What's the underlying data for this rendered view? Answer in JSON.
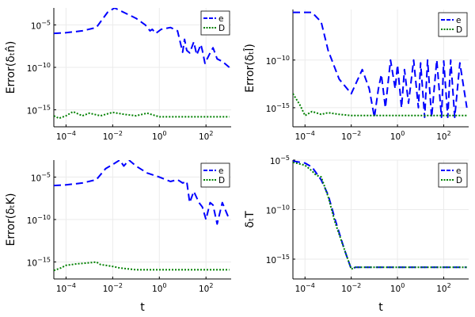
{
  "colors": {
    "e": "#0000ff",
    "D": "#008000",
    "grid": "#ebebeb",
    "axis": "#000000"
  },
  "chart_data": [
    {
      "type": "line",
      "panel": "top-left",
      "ylabel": "Error(δₜn̂)",
      "xlabel": "",
      "xscale": "log",
      "yscale": "log",
      "xlim": [
        3e-05,
        1200
      ],
      "ylim": [
        1e-17,
        0.001
      ],
      "xticks": [
        {
          "v": 0.0001,
          "base": "10",
          "exp": "−4"
        },
        {
          "v": 0.01,
          "base": "10",
          "exp": "−2"
        },
        {
          "v": 1,
          "base": "10",
          "exp": "0"
        },
        {
          "v": 100,
          "base": "10",
          "exp": "2"
        }
      ],
      "yticks": [
        {
          "v": 1e-05,
          "base": "10",
          "exp": "−5"
        },
        {
          "v": 1e-10,
          "base": "10",
          "exp": "−10"
        },
        {
          "v": 1e-15,
          "base": "10",
          "exp": "−15"
        }
      ],
      "grid": true,
      "legend": {
        "position": "top-right",
        "entries": [
          "e",
          "D"
        ]
      },
      "series": [
        {
          "name": "e",
          "style": "dashed",
          "x": [
            3e-05,
            0.0001,
            0.0005,
            0.002,
            0.006,
            0.012,
            0.03,
            0.1,
            0.25,
            0.4,
            0.5,
            0.7,
            1.2,
            3,
            6,
            10,
            12,
            15,
            20,
            30,
            40,
            60,
            70,
            90,
            150,
            200,
            300,
            500,
            1000
          ],
          "y": [
            1e-06,
            1.2e-06,
            2e-06,
            5e-06,
            0.0003,
            0.001,
            0.0003,
            6e-05,
            1e-05,
            2e-06,
            3e-06,
            1e-06,
            3e-06,
            5e-06,
            2e-06,
            6e-09,
            2e-07,
            1e-08,
            5e-09,
            1e-07,
            3e-09,
            5e-08,
            1e-08,
            3e-10,
            5e-09,
            2e-08,
            1e-09,
            5e-10,
            1e-10
          ]
        },
        {
          "name": "D",
          "style": "dotted",
          "x": [
            3e-05,
            5e-05,
            0.0001,
            0.0002,
            0.0005,
            0.001,
            0.003,
            0.01,
            0.03,
            0.1,
            0.3,
            1,
            10,
            100,
            1000
          ],
          "y": [
            2e-16,
            1e-16,
            2e-16,
            6e-16,
            2e-16,
            4e-16,
            2e-16,
            5e-16,
            3e-16,
            2e-16,
            4e-16,
            1.5e-16,
            1.5e-16,
            1.5e-16,
            1.5e-16
          ]
        }
      ]
    },
    {
      "type": "line",
      "panel": "top-right",
      "ylabel": "Error(δₜl̂)",
      "xlabel": "",
      "xscale": "log",
      "yscale": "log",
      "xlim": [
        3e-05,
        1200
      ],
      "ylim": [
        1e-17,
        2e-05
      ],
      "xticks": [
        {
          "v": 0.0001,
          "base": "10",
          "exp": "−4"
        },
        {
          "v": 0.01,
          "base": "10",
          "exp": "−2"
        },
        {
          "v": 1,
          "base": "10",
          "exp": "0"
        },
        {
          "v": 100,
          "base": "10",
          "exp": "2"
        }
      ],
      "yticks": [
        {
          "v": 1e-10,
          "base": "10",
          "exp": "−10"
        },
        {
          "v": 1e-15,
          "base": "10",
          "exp": "−15"
        }
      ],
      "grid": true,
      "legend": {
        "position": "top-right",
        "entries": [
          "e",
          "D"
        ]
      },
      "series": [
        {
          "name": "e",
          "style": "dashed",
          "x": [
            3e-05,
            0.0001,
            0.0002,
            0.0005,
            0.001,
            0.003,
            0.01,
            0.03,
            0.06,
            0.1,
            0.15,
            0.2,
            0.3,
            0.5,
            0.8,
            1,
            1.5,
            2,
            3,
            5,
            8,
            10,
            15,
            20,
            30,
            50,
            80,
            100,
            150,
            200,
            300,
            500,
            1000
          ],
          "y": [
            1e-05,
            1e-05,
            1e-05,
            1e-06,
            1e-09,
            1e-12,
            3e-14,
            1e-11,
            1e-13,
            1e-16,
            1e-13,
            3e-12,
            1e-15,
            1e-10,
            1e-13,
            3e-11,
            1e-15,
            1e-11,
            3e-15,
            1e-10,
            1e-15,
            5e-11,
            1e-16,
            1e-10,
            1e-16,
            1e-10,
            1e-16,
            8e-11,
            1e-16,
            1e-10,
            1e-16,
            5e-11,
            1e-15
          ]
        },
        {
          "name": "D",
          "style": "dotted",
          "x": [
            3e-05,
            6e-05,
            0.0001,
            0.0002,
            0.0005,
            0.001,
            0.003,
            0.01,
            0.1,
            1,
            10,
            100,
            1000
          ],
          "y": [
            3e-14,
            2e-15,
            1.5e-16,
            4e-16,
            2e-16,
            3e-16,
            2e-16,
            1.5e-16,
            1.5e-16,
            1.5e-16,
            1.5e-16,
            1.5e-16,
            1.5e-16
          ]
        }
      ]
    },
    {
      "type": "line",
      "panel": "bottom-left",
      "ylabel": "Error(δₜK)",
      "xlabel": "t",
      "xscale": "log",
      "yscale": "log",
      "xlim": [
        3e-05,
        1200
      ],
      "ylim": [
        1e-17,
        0.001
      ],
      "xticks": [
        {
          "v": 0.0001,
          "base": "10",
          "exp": "−4"
        },
        {
          "v": 0.01,
          "base": "10",
          "exp": "−2"
        },
        {
          "v": 1,
          "base": "10",
          "exp": "0"
        },
        {
          "v": 100,
          "base": "10",
          "exp": "2"
        }
      ],
      "yticks": [
        {
          "v": 1e-05,
          "base": "10",
          "exp": "−5"
        },
        {
          "v": 1e-10,
          "base": "10",
          "exp": "−10"
        },
        {
          "v": 1e-15,
          "base": "10",
          "exp": "−15"
        }
      ],
      "grid": true,
      "legend": {
        "position": "top-right",
        "entries": [
          "e",
          "D"
        ]
      },
      "series": [
        {
          "name": "e",
          "style": "dashed",
          "x": [
            3e-05,
            0.0001,
            0.0005,
            0.002,
            0.005,
            0.01,
            0.02,
            0.03,
            0.05,
            0.1,
            0.3,
            1,
            3,
            6,
            10,
            15,
            20,
            30,
            50,
            70,
            100,
            150,
            200,
            300,
            500,
            1000
          ],
          "y": [
            1e-06,
            1.2e-06,
            2e-06,
            5e-06,
            0.0001,
            0.0003,
            0.001,
            0.0002,
            0.001,
            0.0002,
            3e-05,
            1e-05,
            3e-06,
            5e-06,
            2e-06,
            3e-06,
            1e-08,
            2e-07,
            1e-08,
            3e-09,
            1e-10,
            1e-08,
            5e-09,
            3e-11,
            1e-08,
            1e-10
          ]
        },
        {
          "name": "D",
          "style": "dotted",
          "x": [
            3e-05,
            6e-05,
            0.0001,
            0.0003,
            0.001,
            0.002,
            0.003,
            0.005,
            0.01,
            0.02,
            0.05,
            0.1,
            1,
            10,
            100,
            1000
          ],
          "y": [
            1e-16,
            2e-16,
            4e-16,
            6e-16,
            8e-16,
            1e-15,
            5e-16,
            4e-16,
            3e-16,
            2e-16,
            1.5e-16,
            1.2e-16,
            1.2e-16,
            1.2e-16,
            1.2e-16,
            1.2e-16
          ]
        }
      ]
    },
    {
      "type": "line",
      "panel": "bottom-right",
      "ylabel": "δₜT",
      "xlabel": "t",
      "xscale": "log",
      "yscale": "log",
      "xlim": [
        3e-05,
        1200
      ],
      "ylim": [
        1e-17,
        1e-05
      ],
      "xticks": [
        {
          "v": 0.0001,
          "base": "10",
          "exp": "−4"
        },
        {
          "v": 0.01,
          "base": "10",
          "exp": "−2"
        },
        {
          "v": 1,
          "base": "10",
          "exp": "0"
        },
        {
          "v": 100,
          "base": "10",
          "exp": "2"
        }
      ],
      "yticks": [
        {
          "v": 1e-05,
          "base": "10",
          "exp": "−5"
        },
        {
          "v": 1e-10,
          "base": "10",
          "exp": "−10"
        },
        {
          "v": 1e-15,
          "base": "10",
          "exp": "−15"
        }
      ],
      "grid": true,
      "legend": {
        "position": "top-right",
        "entries": [
          "e",
          "D"
        ]
      },
      "series": [
        {
          "name": "e",
          "style": "dashed",
          "x": [
            3e-05,
            0.0001,
            0.0002,
            0.0005,
            0.001,
            0.002,
            0.005,
            0.01,
            0.015,
            0.1,
            1,
            10,
            100,
            1000
          ],
          "y": [
            8e-06,
            5e-06,
            2e-06,
            1e-07,
            3e-09,
            1e-11,
            1e-14,
            1e-16,
            1.5e-16,
            1.5e-16,
            1.5e-16,
            1.5e-16,
            1.5e-16,
            1.5e-16
          ]
        },
        {
          "name": "D",
          "style": "dotted",
          "x": [
            3e-05,
            0.0001,
            0.0002,
            0.0003,
            0.0005,
            0.001,
            0.002,
            0.005,
            0.01,
            0.015,
            0.1,
            1,
            10,
            100,
            1000
          ],
          "y": [
            6e-06,
            3e-06,
            8e-07,
            3e-07,
            2e-07,
            2e-09,
            5e-12,
            1e-14,
            1e-16,
            1.5e-16,
            1.5e-16,
            1.5e-16,
            1.5e-16,
            1.5e-16,
            1.5e-16
          ]
        }
      ]
    }
  ]
}
